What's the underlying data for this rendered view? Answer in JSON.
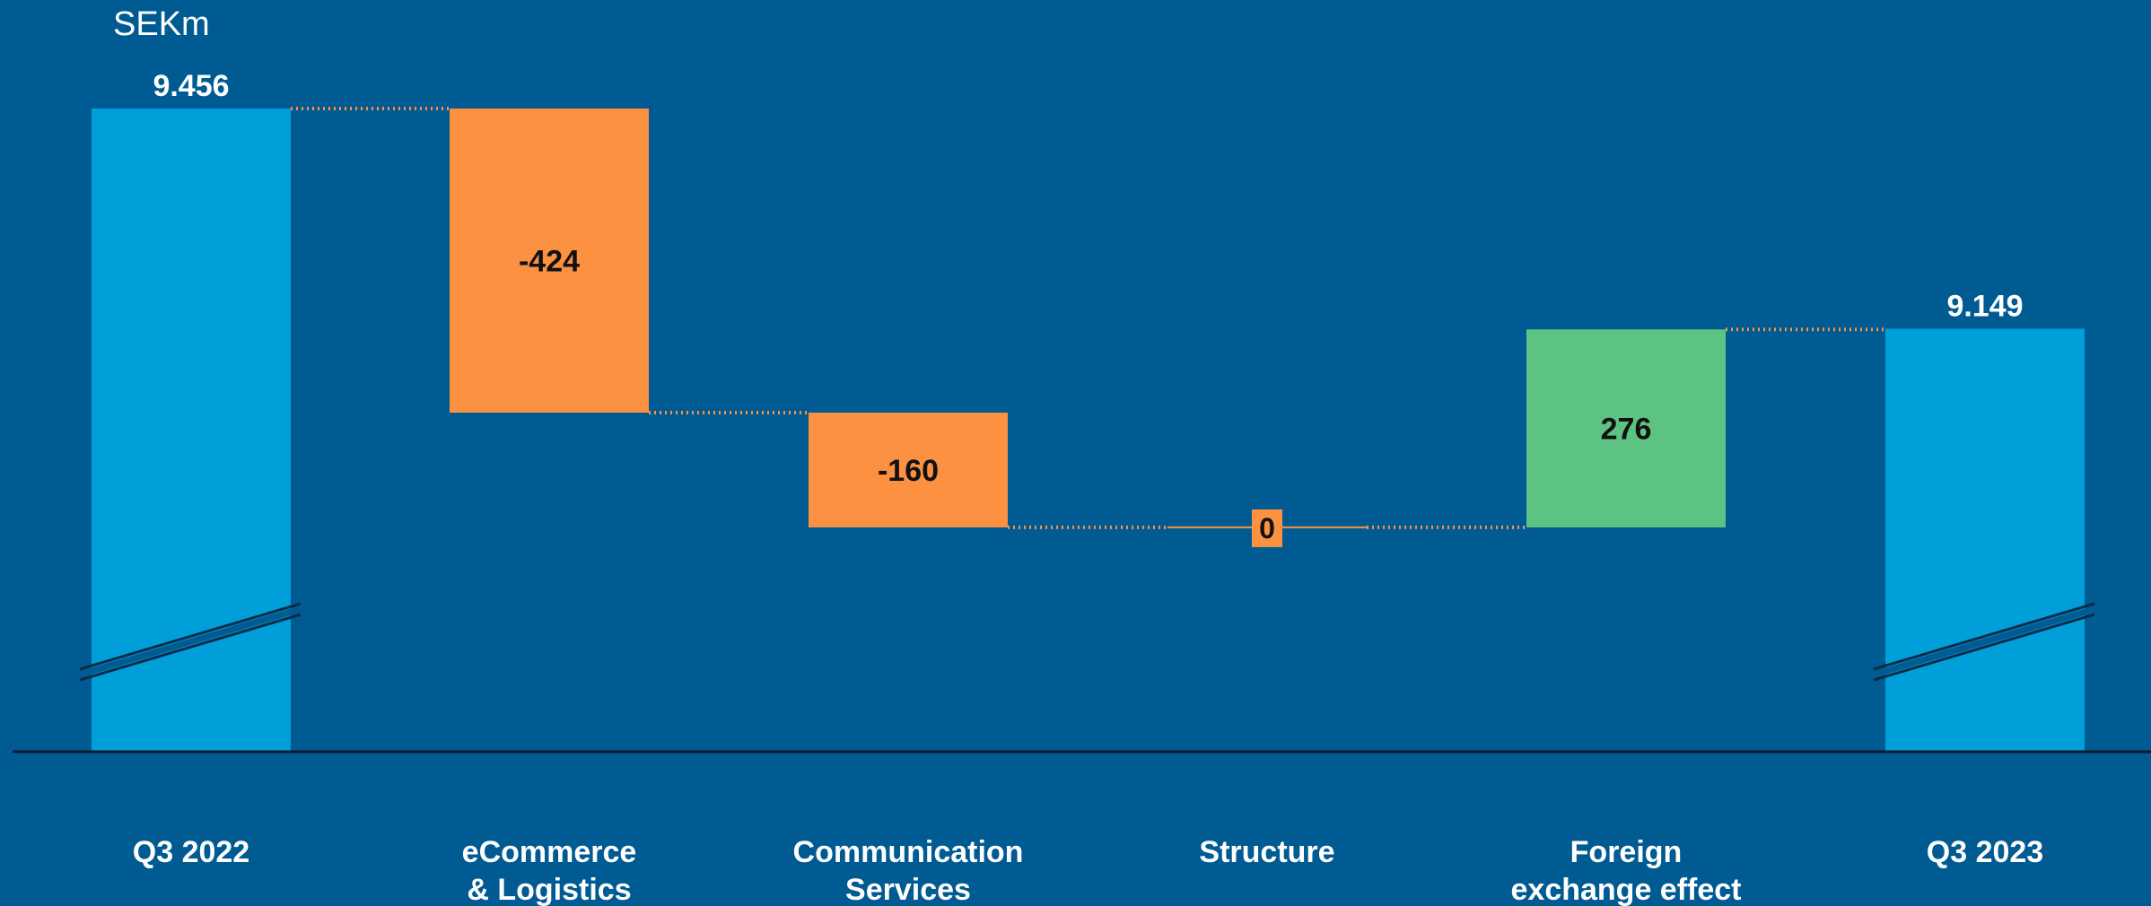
{
  "chart_data": {
    "type": "bar",
    "subtype": "waterfall",
    "unit_label": "SEKm",
    "y_axis_break": true,
    "categories": [
      "Q3 2022",
      "eCommerce\n& Logistics",
      "Communication\nServices",
      "Structure",
      "Foreign\nexchange effect",
      "Q3 2023"
    ],
    "values": [
      9456,
      -424,
      -160,
      0,
      276,
      9149
    ],
    "value_labels": [
      "9.456",
      "-424",
      "-160",
      "0",
      "276",
      "9.149"
    ],
    "bar_kinds": [
      "total",
      "decrease",
      "decrease",
      "decrease",
      "increase",
      "total"
    ],
    "colors": {
      "background": "#005b93",
      "total": "#009fd9",
      "decrease": "#fd9142",
      "increase": "#5dc383",
      "connector": "#fd9142",
      "axis": "#0a1a2a",
      "label_light": "#ffffff",
      "label_dark": "#111111"
    },
    "grid": false,
    "legend": "none"
  }
}
